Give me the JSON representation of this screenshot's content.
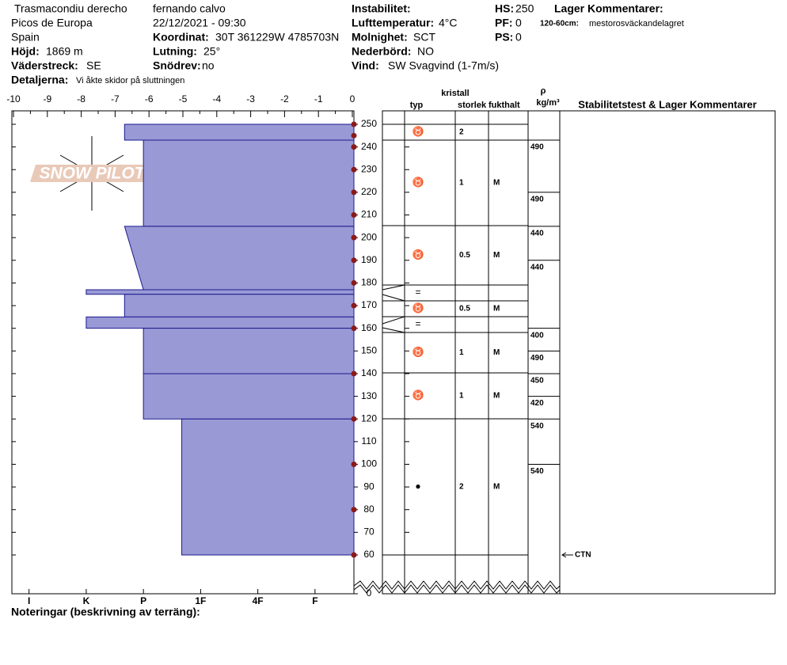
{
  "header": {
    "location": "Trasmacondiu derecho",
    "observer": "fernando calvo",
    "region": "Picos de Europa",
    "datetime": "22/12/2021 - 09:30",
    "country": "Spain",
    "fields": [
      {
        "label": "Höjd:",
        "value": "1869 m"
      },
      {
        "label": "Väderstreck:",
        "value": "SE"
      },
      {
        "label": "Detaljerna:",
        "value": "Vi åkte skidor på sluttningen"
      },
      {
        "label": "Koordinat:",
        "value": "30T 361229W 4785703N"
      },
      {
        "label": "Lutning:",
        "value": "25°"
      },
      {
        "label": "Snödrev:",
        "value": "no"
      },
      {
        "label": "Lufttemperatur:",
        "value": "4°C"
      },
      {
        "label": "Molnighet:",
        "value": "SCT"
      },
      {
        "label": "Nederbörd:",
        "value": "NO"
      },
      {
        "label": "Vind:",
        "value": "SW Svagvind (1-7m/s)"
      },
      {
        "label": "HS:",
        "value": "250"
      },
      {
        "label": "PF:",
        "value": "0"
      },
      {
        "label": "PS:",
        "value": "0"
      }
    ],
    "instability_label": "Instabilitet:",
    "comments_title": "Lager Kommentarer:",
    "comment_range": "120-60cm:",
    "comment_text": "mestorosväckandelagret"
  },
  "chart_data": {
    "type": "snow-profile",
    "watermark": "SNOW PILOT",
    "xlim": [
      -10,
      0
    ],
    "xticks": [
      -10,
      -9,
      -8,
      -7,
      -6,
      -5,
      -4,
      -3,
      -2,
      -1,
      0
    ],
    "ylim": [
      60,
      250
    ],
    "yticks": [
      0,
      60,
      70,
      80,
      90,
      100,
      110,
      120,
      130,
      140,
      150,
      160,
      170,
      180,
      190,
      200,
      210,
      220,
      230,
      240,
      250
    ],
    "axis_break": true,
    "hardness_lim": [
      0.32,
      6.3
    ],
    "hardness_ticks": [
      {
        "value": 6,
        "label": "I"
      },
      {
        "value": 5,
        "label": "K"
      },
      {
        "value": 4,
        "label": "P"
      },
      {
        "value": 3,
        "label": "1F"
      },
      {
        "value": 2,
        "label": "4F"
      },
      {
        "value": 1,
        "label": "F"
      }
    ],
    "layer_color": "#9999d6",
    "layers": [
      {
        "top": 250,
        "bottom": 243,
        "hardness": 4.33
      },
      {
        "top": 243,
        "bottom": 205,
        "hardness": 4
      },
      {
        "top": 205,
        "bottom": 177,
        "hardness": 4.33,
        "hardness_bottom": 4
      },
      {
        "top": 177,
        "bottom": 175,
        "hardness": 5
      },
      {
        "top": 175,
        "bottom": 165,
        "hardness": 4.33
      },
      {
        "top": 165,
        "bottom": 160,
        "hardness": 5
      },
      {
        "top": 160,
        "bottom": 140,
        "hardness": 4
      },
      {
        "top": 140,
        "bottom": 120,
        "hardness": 4
      },
      {
        "top": 120,
        "bottom": 60,
        "hardness": 3.33
      }
    ],
    "temperature_color": "#8b1a1a",
    "temperatures": {
      "heights": [
        250,
        245,
        240,
        230,
        220,
        210,
        200,
        190,
        180,
        170,
        160,
        140,
        120,
        100,
        80,
        60
      ],
      "values": [
        0,
        0,
        0,
        0,
        0,
        0,
        0,
        0,
        0,
        0,
        0,
        0,
        0,
        0,
        0,
        0
      ]
    },
    "table_headers": {
      "crystal": "kristall",
      "type": "typ",
      "size": "storlek",
      "moisture": "fukthalt",
      "rho": "ρ",
      "density_unit": "kg/m³",
      "comments": "Stabilitetstest & Lager Kommentarer"
    },
    "grains": [
      {
        "type": "♉",
        "size": 2
      },
      {
        "type": "♉",
        "size": 1,
        "moisture": "M"
      },
      {
        "type": "♉",
        "size": 0.5,
        "moisture": "M"
      },
      {
        "type": "="
      },
      {
        "type": "♉",
        "size": 0.5,
        "moisture": "M"
      },
      {
        "type": "="
      },
      {
        "type": "♉",
        "size": 1,
        "moisture": "M"
      },
      {
        "type": "♉",
        "size": 1,
        "moisture": "M"
      },
      {
        "type": "●",
        "size": 2,
        "moisture": "M"
      }
    ],
    "densities": [
      {
        "height": 243,
        "value": 490
      },
      {
        "height": 220,
        "value": 490
      },
      {
        "height": 205,
        "value": 440
      },
      {
        "height": 190,
        "value": 440
      },
      {
        "height": 160,
        "value": 400
      },
      {
        "height": 150,
        "value": 490
      },
      {
        "height": 140,
        "value": 450
      },
      {
        "height": 130,
        "value": 420
      },
      {
        "height": 120,
        "value": 540
      },
      {
        "height": 100,
        "value": 540
      }
    ],
    "stability_tests": [
      {
        "height": 60,
        "text": "CTN"
      }
    ],
    "notes_label": "Noteringar (beskrivning av terräng):"
  }
}
